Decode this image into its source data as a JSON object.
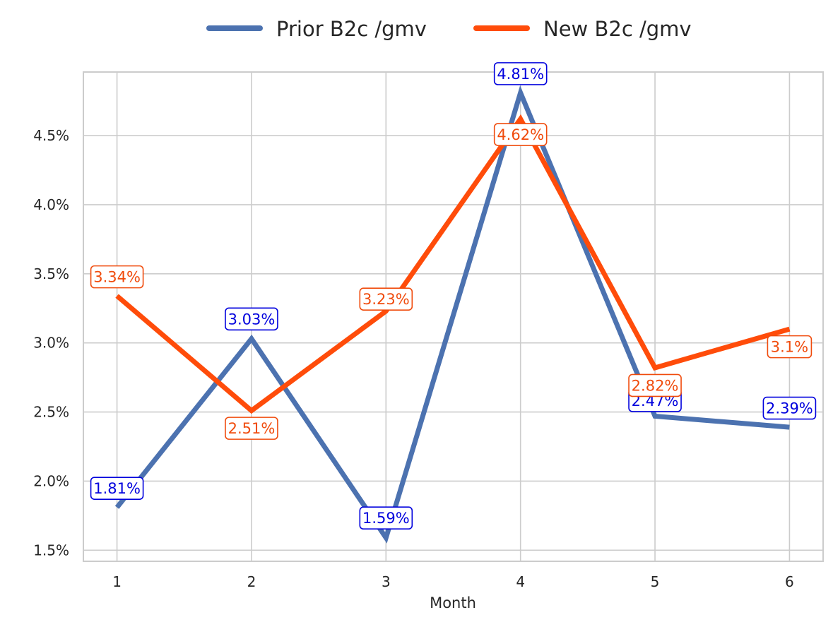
{
  "chart_data": {
    "type": "line",
    "xlabel": "Month",
    "ylabel": "",
    "x": [
      1,
      2,
      3,
      4,
      5,
      6
    ],
    "x_tick_labels": [
      "1",
      "2",
      "3",
      "4",
      "5",
      "6"
    ],
    "ylim": [
      1.42,
      4.96
    ],
    "y_ticks": [
      1.5,
      2.0,
      2.5,
      3.0,
      3.5,
      4.0,
      4.5
    ],
    "y_tick_labels": [
      "1.5%",
      "2.0%",
      "2.5%",
      "3.0%",
      "3.5%",
      "4.0%",
      "4.5%"
    ],
    "grid": true,
    "legend_position": "top-center",
    "series": [
      {
        "name": "Prior B2c /gmv",
        "color": "#4c72b0",
        "label_color": "#0000dd",
        "values": [
          1.81,
          3.03,
          1.59,
          4.81,
          2.47,
          2.39
        ],
        "labels": [
          "1.81%",
          "3.03%",
          "1.59%",
          "4.81%",
          "2.47%",
          "2.39%"
        ]
      },
      {
        "name": "New B2c /gmv",
        "color": "#ff4c0a",
        "label_color": "#f04b0c",
        "values": [
          3.34,
          2.51,
          3.23,
          4.62,
          2.82,
          3.1
        ],
        "labels": [
          "3.34%",
          "2.51%",
          "3.23%",
          "4.62%",
          "2.82%",
          "3.1%"
        ]
      }
    ]
  }
}
